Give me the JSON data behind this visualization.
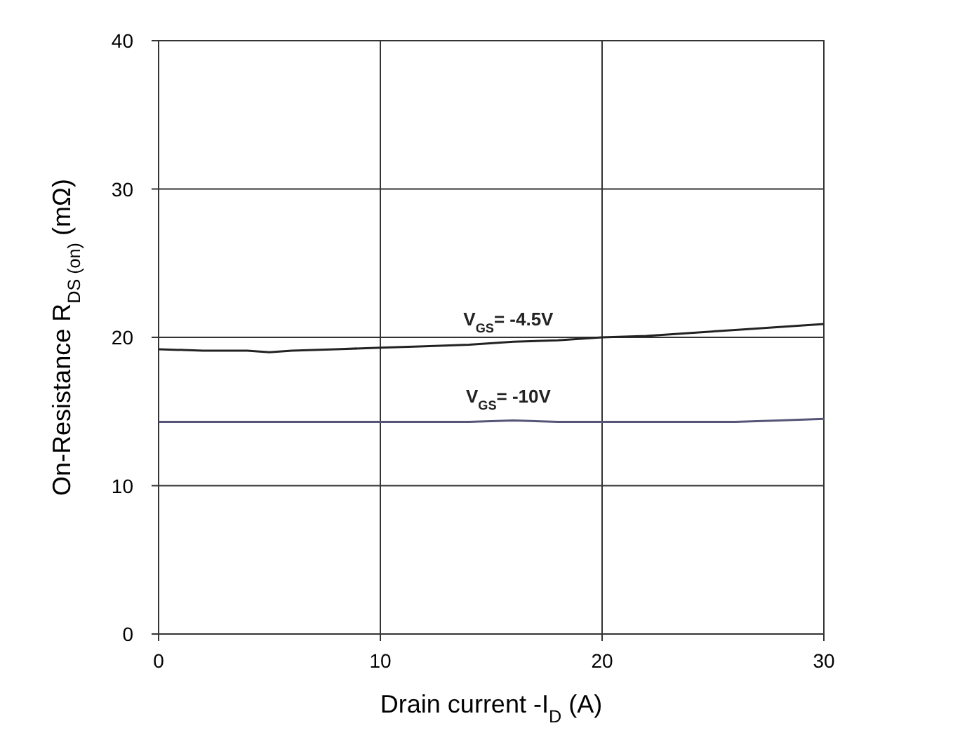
{
  "chart_data": {
    "type": "line",
    "xlabel": "Drain current -I$_{D}$ (A)",
    "ylabel": "On-Resistance R$_{DS (on)}$ (mΩ)",
    "x": [
      0,
      2,
      4,
      5,
      6,
      8,
      10,
      12,
      14,
      16,
      18,
      20,
      22,
      24,
      26,
      28,
      30
    ],
    "series": [
      {
        "name": "V$_{GS}$= -4.5V",
        "color": "#222222",
        "values": [
          19.2,
          19.1,
          19.1,
          19.0,
          19.1,
          19.2,
          19.3,
          19.4,
          19.5,
          19.7,
          19.8,
          20.0,
          20.1,
          20.3,
          20.5,
          20.7,
          20.9
        ]
      },
      {
        "name": "V$_{GS}$= -10V",
        "color": "#555577",
        "values": [
          14.3,
          14.3,
          14.3,
          14.3,
          14.3,
          14.3,
          14.3,
          14.3,
          14.3,
          14.4,
          14.3,
          14.3,
          14.3,
          14.3,
          14.3,
          14.4,
          14.5
        ]
      }
    ],
    "xlim": [
      0,
      30
    ],
    "xticks": [
      0,
      10,
      20,
      30
    ],
    "ylim": [
      0,
      40
    ],
    "yticks": [
      0,
      10,
      20,
      30,
      40
    ],
    "grid": true,
    "marker": "none",
    "line_style": "solid"
  }
}
